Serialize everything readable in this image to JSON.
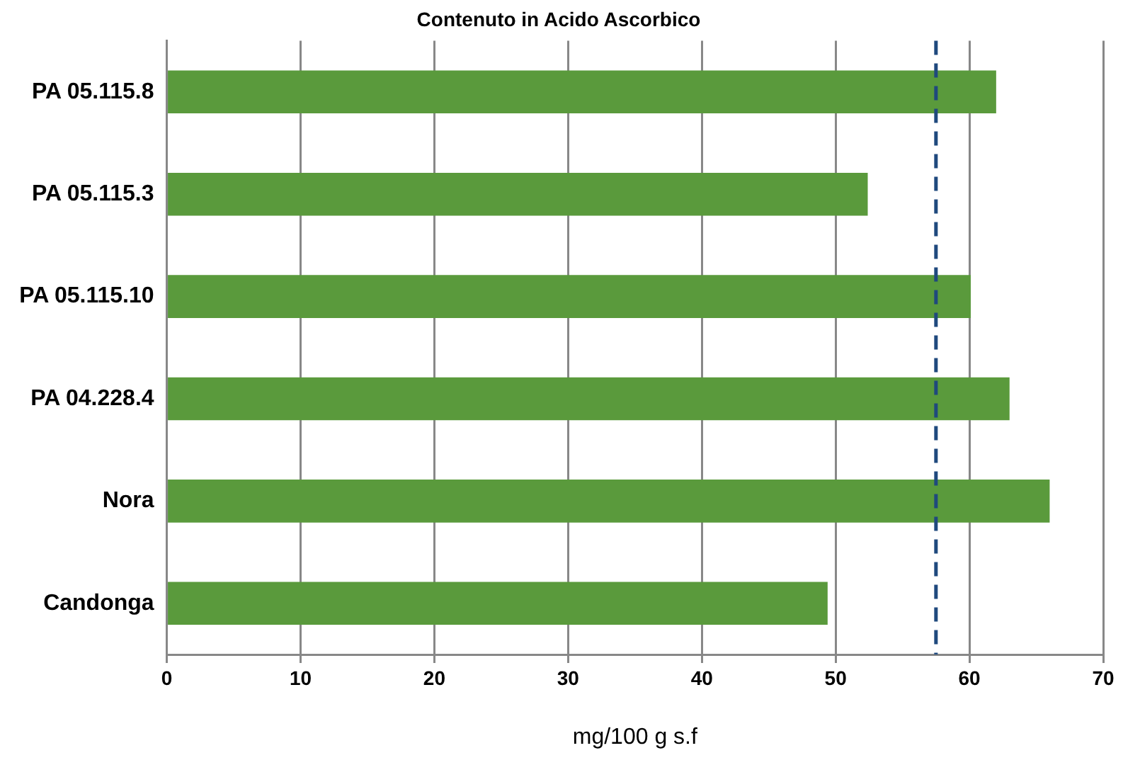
{
  "chart_data": {
    "type": "bar",
    "orientation": "horizontal",
    "title": "Contenuto in Acido Ascorbico",
    "xlabel": "mg/100 g s.f",
    "categories": [
      "PA 05.115.8",
      "PA 05.115.3",
      "PA 05.115.10",
      "PA 04.228.4",
      "Nora",
      "Candonga"
    ],
    "values": [
      62.0,
      52.4,
      60.1,
      63.0,
      66.0,
      49.4
    ],
    "color": "#5a9a3c",
    "xlim": [
      0,
      70
    ],
    "xticks": [
      0,
      10,
      20,
      30,
      40,
      50,
      60,
      70
    ],
    "grid": "x",
    "legend": false,
    "ref_lines": [
      {
        "axis": "x",
        "value": 57.5,
        "color": "#1f497d",
        "line_style": "dashed"
      }
    ]
  }
}
